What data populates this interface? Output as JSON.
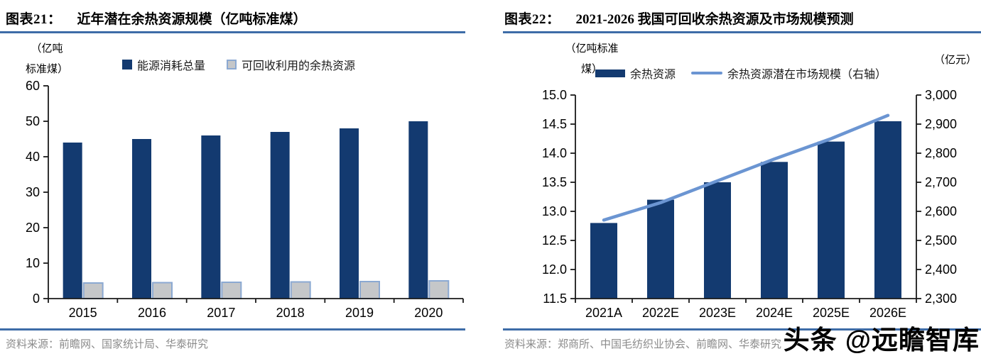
{
  "watermark": {
    "text": "头条 @远瞻智库"
  },
  "left_panel": {
    "fig_label": "图表21：",
    "title": "近年潜在余热资源规模（亿吨标准煤）",
    "unit_line1": "（亿吨",
    "unit_line2": "标准煤）",
    "source_label": "资料来源：",
    "source_text": "前瞻网、国家统计局、华泰研究",
    "chart_data": {
      "type": "bar",
      "title": "近年潜在余热资源规模（亿吨标准煤）",
      "categories": [
        "2015",
        "2016",
        "2017",
        "2018",
        "2019",
        "2020"
      ],
      "series": [
        {
          "name": "能源消耗总量",
          "type": "bar",
          "swatch": "square",
          "color": "#133a70",
          "values": [
            44,
            45,
            46,
            47,
            48,
            50
          ]
        },
        {
          "name": "可回收利用的余热资源",
          "type": "bar",
          "swatch": "square",
          "color": "#c5c7c9",
          "border": "#8ba9d2",
          "values": [
            4.4,
            4.5,
            4.6,
            4.7,
            4.8,
            5.0
          ]
        }
      ],
      "left_axis": {
        "min": 0,
        "max": 60,
        "step": 10,
        "decimals": 0,
        "unit": "亿吨标准煤"
      },
      "legend_position": "top",
      "grid": false
    }
  },
  "right_panel": {
    "fig_label": "图表22：",
    "title": "2021-2026 我国可回收余热资源及市场规模预测",
    "unit_line1": "（亿吨标准",
    "unit_line2": "煤）",
    "unit_right": "（亿元）",
    "source_label": "资料来源：",
    "source_text": "郑商所、中国毛纺织业协会、前瞻网、华泰研究",
    "chart_data": {
      "type": "bar+line",
      "title": "2021-2026 我国可回收余热资源及市场规模预测",
      "categories": [
        "2021A",
        "2022E",
        "2023E",
        "2024E",
        "2025E",
        "2026E"
      ],
      "series": [
        {
          "name": "余热资源",
          "type": "bar",
          "axis": "left",
          "swatch": "bar",
          "color": "#133a70",
          "values": [
            12.8,
            13.2,
            13.5,
            13.85,
            14.2,
            14.55
          ]
        },
        {
          "name": "余热资源潜在市场规模（右轴）",
          "type": "line",
          "axis": "right",
          "swatch": "line",
          "color": "#6b95d2",
          "values": [
            2570,
            2630,
            2705,
            2780,
            2850,
            2930
          ]
        }
      ],
      "left_axis": {
        "min": 11.5,
        "max": 15.0,
        "step": 0.5,
        "decimals": 1,
        "unit": "亿吨标准煤"
      },
      "right_axis": {
        "min": 2300,
        "max": 3000,
        "step": 100,
        "comma": true,
        "unit": "亿元"
      },
      "legend_position": "top",
      "grid": false
    }
  }
}
